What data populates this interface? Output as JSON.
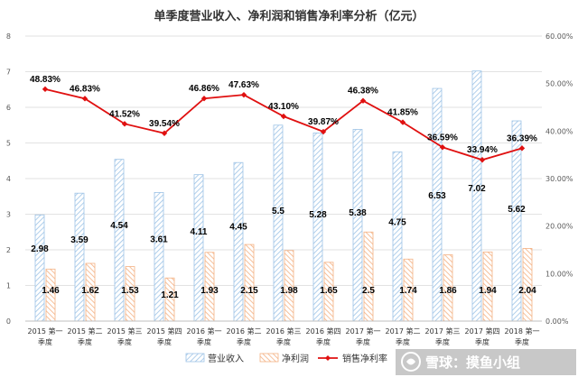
{
  "chart_data": {
    "type": "bar+line",
    "title": "单季度营业收入、净利润和销售净利率分析（亿元）",
    "categories": [
      [
        "2015 第一",
        "季度"
      ],
      [
        "2015 第二",
        "季度"
      ],
      [
        "2015 第三",
        "季度"
      ],
      [
        "2015 第四",
        "季度"
      ],
      [
        "2016 第一",
        "季度"
      ],
      [
        "2016 第二",
        "季度"
      ],
      [
        "2016 第三",
        "季度"
      ],
      [
        "2016 第四",
        "季度"
      ],
      [
        "2017 第一",
        "季度"
      ],
      [
        "2017 第二",
        "季度"
      ],
      [
        "2017 第三",
        "季度"
      ],
      [
        "2017 第四",
        "季度"
      ],
      [
        "2018 第一",
        "季度"
      ]
    ],
    "series": [
      {
        "name": "营业收入",
        "type": "bar",
        "axis": "left",
        "color": "#9dc3e6",
        "values": [
          2.98,
          3.59,
          4.54,
          3.61,
          4.11,
          4.45,
          5.5,
          5.28,
          5.38,
          4.75,
          6.53,
          7.02,
          5.62
        ],
        "labels": [
          "2.98",
          "3.59",
          "4.54",
          "3.61",
          "4.11",
          "4.45",
          "5.5",
          "5.28",
          "5.38",
          "4.75",
          "6.53",
          "7.02",
          "5.62"
        ]
      },
      {
        "name": "净利润",
        "type": "bar",
        "axis": "left",
        "color": "#f4b183",
        "values": [
          1.46,
          1.62,
          1.53,
          1.21,
          1.93,
          2.15,
          1.98,
          1.65,
          2.5,
          1.74,
          1.86,
          1.94,
          2.04
        ],
        "labels": [
          "1.46",
          "1.62",
          "1.53",
          "1.21",
          "1.93",
          "2.15",
          "1.98",
          "1.65",
          "2.5",
          "1.74",
          "1.86",
          "1.94",
          "2.04"
        ]
      },
      {
        "name": "销售净利率",
        "type": "line",
        "axis": "right",
        "color": "#e01010",
        "values": [
          48.83,
          46.83,
          41.52,
          39.54,
          46.86,
          47.63,
          43.1,
          39.87,
          46.38,
          41.85,
          36.59,
          33.94,
          36.39
        ],
        "labels": [
          "48.83%",
          "46.83%",
          "41.52%",
          "39.54%",
          "46.86%",
          "47.63%",
          "43.10%",
          "39.87%",
          "46.38%",
          "41.85%",
          "36.59%",
          "33.94%",
          "36.39%"
        ]
      }
    ],
    "left_axis": {
      "min": 0,
      "max": 8,
      "ticks": [
        "0",
        "1",
        "2",
        "3",
        "4",
        "5",
        "6",
        "7",
        "8"
      ]
    },
    "right_axis": {
      "min": 0,
      "max": 60,
      "ticks": [
        "0.00%",
        "10.00%",
        "20.00%",
        "30.00%",
        "40.00%",
        "50.00%",
        "60.00%"
      ]
    },
    "grid": true,
    "legend": {
      "position": "bottom",
      "items": [
        "营业收入",
        "净利润",
        "销售净利率"
      ]
    }
  },
  "watermark": "雪球：摸鱼小组"
}
